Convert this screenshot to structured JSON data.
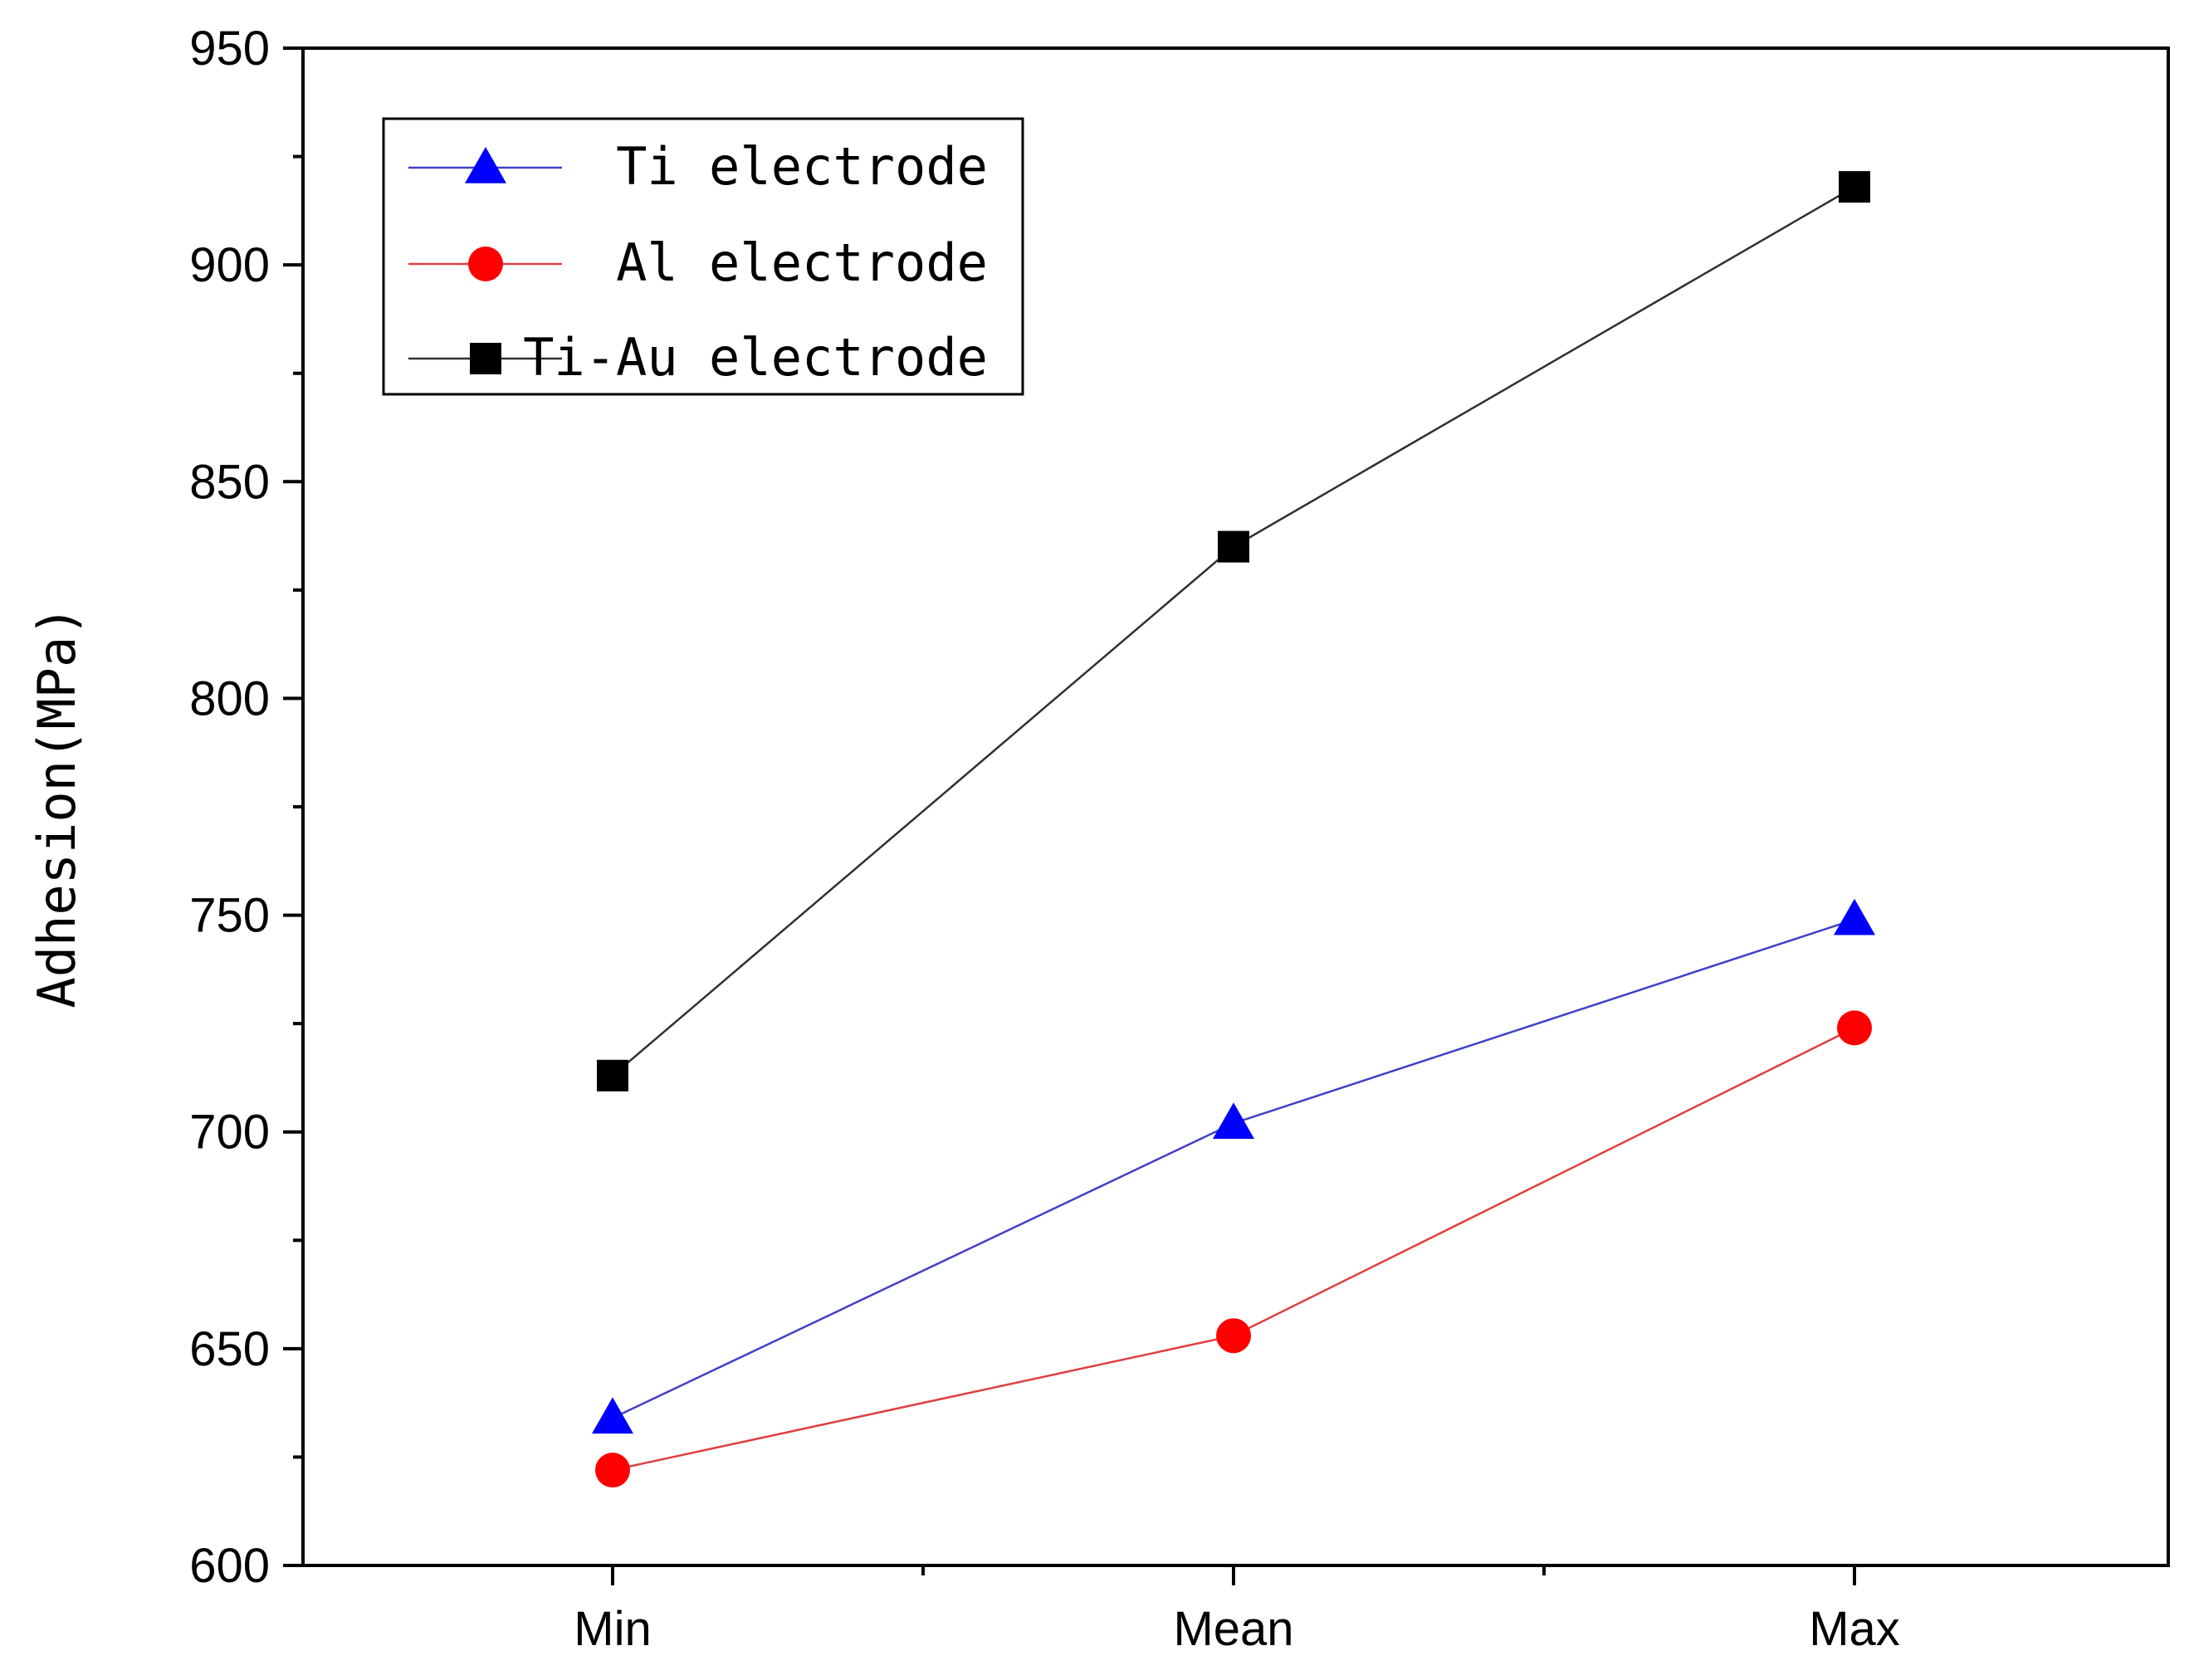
{
  "chart_data": {
    "type": "line",
    "title": "",
    "xlabel": "",
    "ylabel": "Adhesion(MPa)",
    "categories": [
      "Min",
      "Mean",
      "Max"
    ],
    "ylim": [
      600,
      950
    ],
    "yticks": [
      600,
      650,
      700,
      750,
      800,
      850,
      900,
      950
    ],
    "ytick_labels": [
      "600",
      "650",
      "700",
      "750",
      "800",
      "850",
      "900",
      "950"
    ],
    "grid": false,
    "legend_position": "top-left",
    "series": [
      {
        "name": "Ti electrode",
        "marker": "triangle",
        "color": "#0000ff",
        "line_color": "#4040c8",
        "values": [
          634,
          702,
          749
        ]
      },
      {
        "name": "Al electrode",
        "marker": "circle",
        "color": "#ff0000",
        "line_color": "#e04040",
        "values": [
          622,
          653,
          724
        ]
      },
      {
        "name": "Ti-Au electrode",
        "marker": "square",
        "color": "#000000",
        "line_color": "#303030",
        "values": [
          713,
          835,
          918
        ]
      }
    ]
  }
}
